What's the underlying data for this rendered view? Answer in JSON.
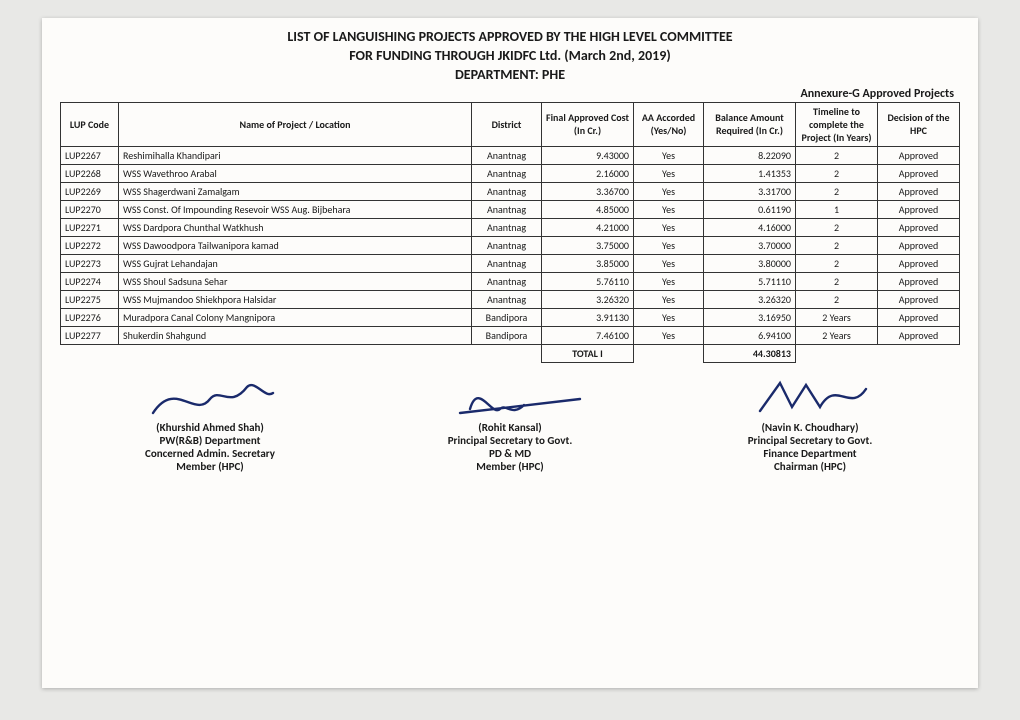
{
  "title_line1": "LIST OF LANGUISHING PROJECTS APPROVED BY THE HIGH LEVEL COMMITTEE",
  "title_line2": "FOR FUNDING THROUGH JKIDFC Ltd. (March 2nd, 2019)",
  "title_line3": "DEPARTMENT: PHE",
  "annexure": "Annexure-G  Approved Projects",
  "columns": [
    "LUP Code",
    "Name of Project / Location",
    "District",
    "Final Approved Cost (In Cr.)",
    "AA Accorded (Yes/No)",
    "Balance Amount Required (In Cr.)",
    "Timeline to complete the Project (In Years)",
    "Decision of the HPC"
  ],
  "rows": [
    [
      "LUP2267",
      "Reshimihalla Khandipari",
      "Anantnag",
      "9.43000",
      "Yes",
      "8.22090",
      "2",
      "Approved"
    ],
    [
      "LUP2268",
      "WSS Wavethroo Arabal",
      "Anantnag",
      "2.16000",
      "Yes",
      "1.41353",
      "2",
      "Approved"
    ],
    [
      "LUP2269",
      "WSS Shagerdwani Zamalgam",
      "Anantnag",
      "3.36700",
      "Yes",
      "3.31700",
      "2",
      "Approved"
    ],
    [
      "LUP2270",
      "WSS Const. Of Impounding Resevoir WSS Aug. Bijbehara",
      "Anantnag",
      "4.85000",
      "Yes",
      "0.61190",
      "1",
      "Approved"
    ],
    [
      "LUP2271",
      "WSS Dardpora Chunthal Watkhush",
      "Anantnag",
      "4.21000",
      "Yes",
      "4.16000",
      "2",
      "Approved"
    ],
    [
      "LUP2272",
      "WSS Dawoodpora Tailwanipora kamad",
      "Anantnag",
      "3.75000",
      "Yes",
      "3.70000",
      "2",
      "Approved"
    ],
    [
      "LUP2273",
      "WSS Gujrat Lehandajan",
      "Anantnag",
      "3.85000",
      "Yes",
      "3.80000",
      "2",
      "Approved"
    ],
    [
      "LUP2274",
      "WSS Shoul Sadsuna Sehar",
      "Anantnag",
      "5.76110",
      "Yes",
      "5.71110",
      "2",
      "Approved"
    ],
    [
      "LUP2275",
      "WSS Mujmandoo Shiekhpora Halsidar",
      "Anantnag",
      "3.26320",
      "Yes",
      "3.26320",
      "2",
      "Approved"
    ],
    [
      "LUP2276",
      "Muradpora Canal Colony Mangnipora",
      "Bandipora",
      "3.91130",
      "Yes",
      "3.16950",
      "2 Years",
      "Approved"
    ],
    [
      "LUP2277",
      "Shukerdin Shahgund",
      "Bandipora",
      "7.46100",
      "Yes",
      "6.94100",
      "2 Years",
      "Approved"
    ]
  ],
  "total_label": "TOTAL I",
  "total_value": "44.30813",
  "col_widths": [
    "58px",
    "auto",
    "70px",
    "92px",
    "70px",
    "92px",
    "82px",
    "82px"
  ],
  "signatories": [
    {
      "name": "(Khurshid Ahmed Shah)",
      "lines": [
        "PW(R&B) Department",
        "Concerned Admin. Secretary",
        "Member (HPC)"
      ]
    },
    {
      "name": "(Rohit Kansal)",
      "lines": [
        "Principal Secretary to Govt.",
        "PD & MD",
        "Member (HPC)"
      ]
    },
    {
      "name": "(Navin K. Choudhary)",
      "lines": [
        "Principal Secretary to Govt.",
        "Finance Department",
        "Chairman (HPC)"
      ]
    }
  ],
  "sig_stroke": "#1a2a6b"
}
